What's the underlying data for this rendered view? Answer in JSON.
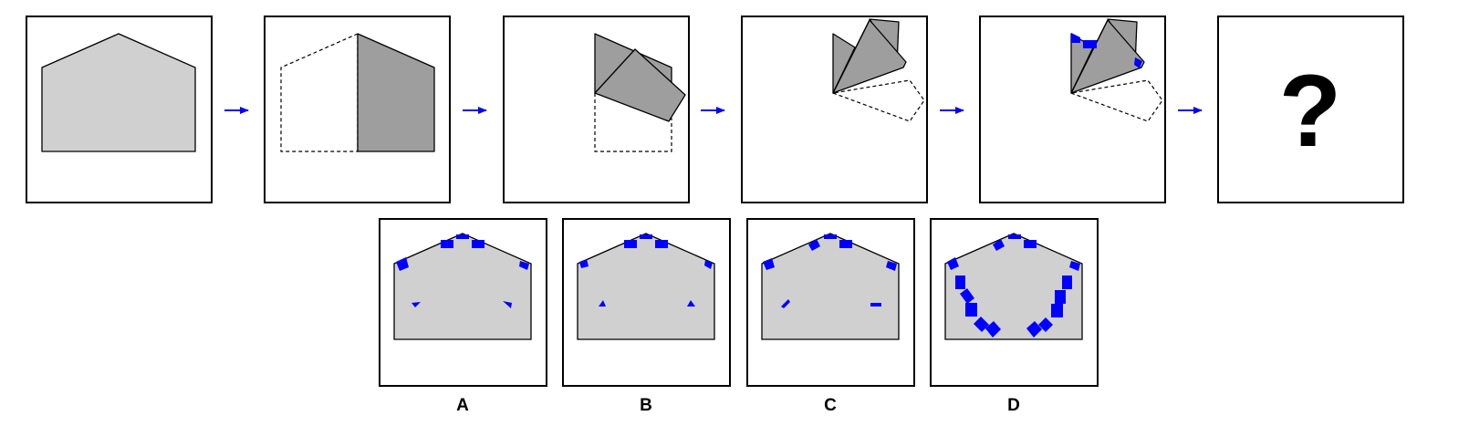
{
  "colors": {
    "sheet": "#d0d0d0",
    "folded": "#9e9e9e",
    "cut": "#0000ff",
    "arrow": "#0000ff"
  },
  "question_mark": "?",
  "options": [
    {
      "label": "A"
    },
    {
      "label": "B"
    },
    {
      "label": "C"
    },
    {
      "label": "D"
    }
  ]
}
